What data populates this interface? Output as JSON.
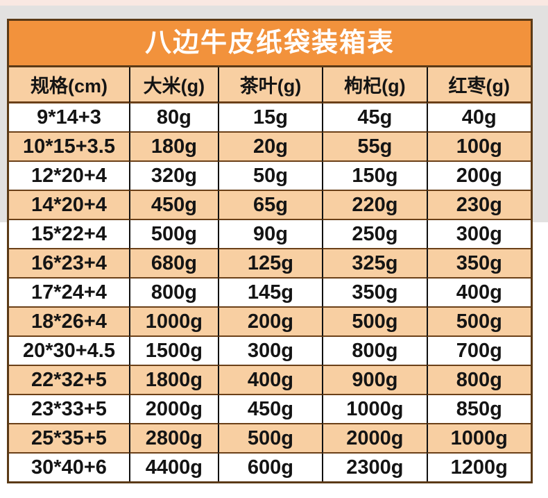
{
  "colors": {
    "bg_strip": "#F9E8E2",
    "bg_upper": "#E2E1E0",
    "bg_lower": "#FFFFFF",
    "title_bg": "#F2923C",
    "title_text": "#FFFFFF",
    "header_bg": "#F8CFA2",
    "row_bg": "#FFFFFF",
    "row_alt_bg": "#F8CFA2",
    "border_outer": "#5B3A16",
    "border_horizontal": "#6B4018",
    "border_vertical": "#101010",
    "text": "#141414"
  },
  "chart_data": {
    "type": "table",
    "title": "八边牛皮纸袋装箱表",
    "columns": [
      "规格(cm)",
      "大米(g)",
      "茶叶(g)",
      "枸杞(g)",
      "红枣(g)"
    ],
    "rows": [
      [
        "9*14+3",
        "80g",
        "15g",
        "45g",
        "40g"
      ],
      [
        "10*15+3.5",
        "180g",
        "20g",
        "55g",
        "100g"
      ],
      [
        "12*20+4",
        "320g",
        "50g",
        "150g",
        "200g"
      ],
      [
        "14*20+4",
        "450g",
        "65g",
        "220g",
        "230g"
      ],
      [
        "15*22+4",
        "500g",
        "90g",
        "250g",
        "300g"
      ],
      [
        "16*23+4",
        "680g",
        "125g",
        "325g",
        "350g"
      ],
      [
        "17*24+4",
        "800g",
        "145g",
        "350g",
        "400g"
      ],
      [
        "18*26+4",
        "1000g",
        "200g",
        "500g",
        "500g"
      ],
      [
        "20*30+4.5",
        "1500g",
        "300g",
        "800g",
        "700g"
      ],
      [
        "22*32+5",
        "1800g",
        "400g",
        "900g",
        "800g"
      ],
      [
        "23*33+5",
        "2000g",
        "450g",
        "1000g",
        "850g"
      ],
      [
        "25*35+5",
        "2800g",
        "500g",
        "2000g",
        "1000g"
      ],
      [
        "30*40+6",
        "4400g",
        "600g",
        "2300g",
        "1200g"
      ]
    ],
    "layout": {
      "alternating_row_shading": true,
      "first_shaded_row_index": 1
    }
  }
}
